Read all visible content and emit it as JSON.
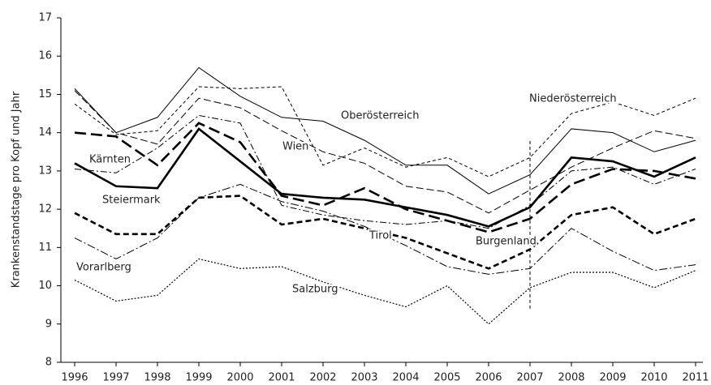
{
  "chart_data": {
    "type": "line",
    "y_label": "Krankenstandstage pro Kopf und Jahr",
    "categories": [
      "1996",
      "1997",
      "1998",
      "1999",
      "2000",
      "2001",
      "2002",
      "2003",
      "2004",
      "2005",
      "2006",
      "2007",
      "2008",
      "2009",
      "2010",
      "2011"
    ],
    "ylim": [
      8,
      17
    ],
    "yticks": [
      8,
      9,
      10,
      11,
      12,
      13,
      14,
      15,
      16,
      17
    ],
    "vertical_line": {
      "x": "2007",
      "y": [
        9.4,
        13.85
      ],
      "dash": "4 3"
    },
    "series": [
      {
        "name": "Oberösterreich",
        "color": "#000",
        "width": 1,
        "dash": "",
        "values": [
          15.15,
          14.0,
          14.4,
          15.7,
          14.95,
          14.4,
          14.3,
          13.8,
          13.15,
          13.15,
          12.4,
          12.9,
          14.1,
          14.0,
          13.5,
          13.8
        ]
      },
      {
        "name": "Niederösterreich",
        "color": "#000",
        "width": 1,
        "dash": "4 3",
        "values": [
          14.75,
          13.95,
          14.05,
          15.2,
          15.15,
          15.2,
          13.15,
          13.6,
          13.1,
          13.35,
          12.85,
          13.35,
          14.5,
          14.8,
          14.45,
          14.9
        ]
      },
      {
        "name": "Wien",
        "color": "#000",
        "width": 1,
        "dash": "9 4",
        "values": [
          15.1,
          14.0,
          13.7,
          14.9,
          14.65,
          14.05,
          13.5,
          13.2,
          12.6,
          12.45,
          11.9,
          12.5,
          13.1,
          13.6,
          14.05,
          13.85
        ]
      },
      {
        "name": "Kärnten",
        "color": "#000",
        "width": 2.6,
        "dash": "14 6",
        "values": [
          14.0,
          13.9,
          13.15,
          14.25,
          13.75,
          12.35,
          12.1,
          12.55,
          12.0,
          11.7,
          11.4,
          11.75,
          12.65,
          13.05,
          13.0,
          12.8
        ]
      },
      {
        "name": "Steiermark",
        "color": "#000",
        "width": 2.6,
        "dash": "",
        "values": [
          13.2,
          12.6,
          12.55,
          14.1,
          13.25,
          12.4,
          12.3,
          12.25,
          12.05,
          11.85,
          11.55,
          12.05,
          13.35,
          13.25,
          12.85,
          13.35
        ]
      },
      {
        "name": "Tirol",
        "color": "#000",
        "width": 1,
        "dash": "8 3 2 3",
        "values": [
          13.05,
          12.95,
          13.6,
          14.45,
          14.25,
          12.1,
          11.85,
          11.7,
          11.6,
          11.7,
          11.5,
          12.1,
          13.0,
          13.1,
          12.65,
          13.05
        ]
      },
      {
        "name": "Burgenland",
        "color": "#000",
        "width": 2.6,
        "dash": "7 4",
        "values": [
          11.9,
          11.35,
          11.35,
          12.3,
          12.35,
          11.6,
          11.75,
          11.5,
          11.25,
          10.85,
          10.45,
          10.95,
          11.85,
          12.05,
          11.35,
          11.75
        ]
      },
      {
        "name": "Vorarlberg",
        "color": "#000",
        "width": 1,
        "dash": "10 3 2 3",
        "values": [
          11.25,
          10.7,
          11.25,
          12.3,
          12.65,
          12.2,
          11.95,
          11.55,
          11.05,
          10.5,
          10.3,
          10.45,
          11.5,
          10.9,
          10.4,
          10.55
        ]
      },
      {
        "name": "Salzburg",
        "color": "#000",
        "width": 1.2,
        "dash": "2 2",
        "values": [
          10.15,
          9.6,
          9.75,
          10.7,
          10.45,
          10.5,
          10.1,
          9.75,
          9.45,
          10.0,
          9.0,
          9.95,
          10.35,
          10.35,
          9.95,
          10.4
        ]
      }
    ]
  }
}
